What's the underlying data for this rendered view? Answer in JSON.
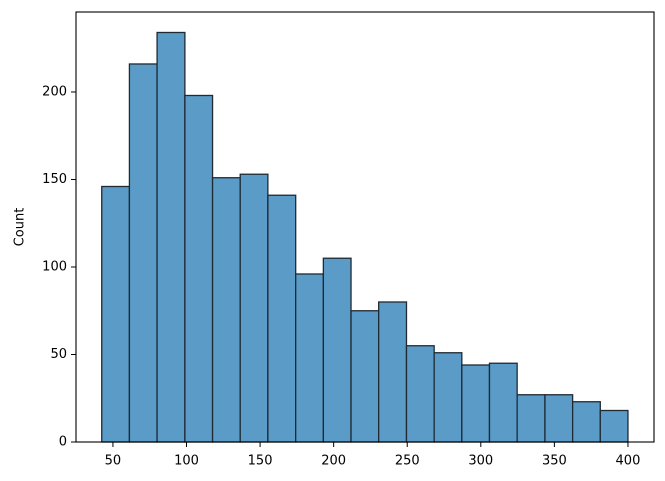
{
  "chart_data": {
    "type": "histogram",
    "y_label": "Count",
    "bins": [
      42.4,
      61.2,
      80.0,
      98.9,
      117.7,
      136.5,
      155.3,
      174.2,
      193.0,
      211.8,
      230.6,
      249.5,
      268.3,
      287.1,
      305.9,
      324.7,
      343.6,
      362.4,
      381.2,
      400.0
    ],
    "values": [
      146,
      216,
      234,
      198,
      151,
      153,
      141,
      96,
      105,
      75,
      80,
      55,
      51,
      44,
      45,
      27,
      27,
      23,
      18
    ],
    "color": "#5a9bc8",
    "edge_color": "#1f2a33",
    "xlim": [
      24.9,
      417.7
    ],
    "xticks": [
      50,
      100,
      150,
      200,
      250,
      300,
      350,
      400
    ],
    "ylim": [
      0,
      245.7
    ],
    "yticks": [
      0,
      50,
      100,
      150,
      200
    ]
  }
}
